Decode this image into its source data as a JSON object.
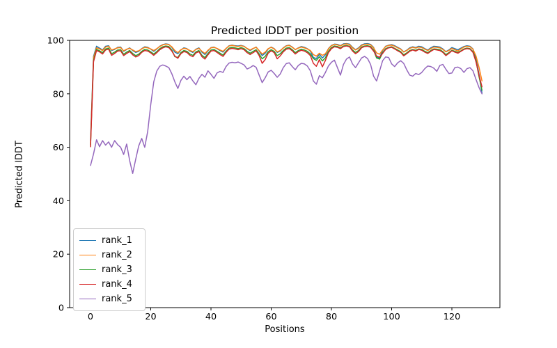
{
  "figure": {
    "title": "Predicted lDDT per position",
    "xlabel": "Positions",
    "ylabel": "Predicted lDDT",
    "background_color": "#ffffff",
    "axis_color": "#000000"
  },
  "legend": {
    "entries": [
      {
        "label": "rank_1",
        "color": "#1f77b4"
      },
      {
        "label": "rank_2",
        "color": "#ff7f0e"
      },
      {
        "label": "rank_3",
        "color": "#2ca02c"
      },
      {
        "label": "rank_4",
        "color": "#d62728"
      },
      {
        "label": "rank_5",
        "color": "#9467bd"
      }
    ]
  },
  "chart_data": {
    "type": "line",
    "title": "Predicted lDDT per position",
    "xlabel": "Positions",
    "ylabel": "Predicted lDDT",
    "xlim": [
      -6.94,
      135.95
    ],
    "ylim": [
      0,
      100
    ],
    "xticks": [
      0,
      20,
      40,
      60,
      80,
      100,
      120
    ],
    "yticks": [
      0,
      20,
      40,
      60,
      80,
      100
    ],
    "grid": false,
    "legend_position": "lower left",
    "x_start": 0,
    "x_step": 1,
    "series": [
      {
        "name": "rank_1",
        "color": "#1f77b4",
        "values": [
          62.5,
          94.0,
          97.8,
          97.1,
          96.4,
          97.8,
          98.0,
          96.2,
          96.6,
          97.4,
          97.5,
          95.9,
          96.6,
          97.2,
          96.2,
          95.5,
          95.9,
          96.9,
          97.6,
          97.4,
          96.7,
          95.9,
          96.8,
          97.8,
          98.4,
          98.7,
          98.5,
          97.4,
          95.6,
          95.0,
          96.4,
          97.2,
          96.9,
          96.0,
          95.5,
          96.7,
          97.2,
          95.6,
          94.7,
          96.1,
          97.3,
          97.5,
          96.9,
          96.2,
          95.6,
          96.9,
          98.0,
          98.2,
          98.0,
          97.9,
          98.1,
          97.8,
          96.9,
          96.2,
          96.9,
          97.5,
          96.0,
          94.3,
          95.2,
          96.8,
          97.5,
          96.9,
          95.5,
          96.0,
          97.2,
          98.0,
          98.2,
          97.5,
          96.5,
          97.2,
          97.7,
          97.4,
          96.9,
          96.0,
          93.6,
          93.2,
          94.8,
          93.4,
          94.6,
          96.9,
          98.1,
          98.6,
          98.5,
          98.0,
          98.7,
          98.8,
          98.6,
          97.4,
          96.5,
          97.2,
          98.3,
          98.7,
          98.8,
          98.5,
          97.4,
          93.8,
          93.4,
          96.2,
          97.8,
          98.2,
          98.4,
          98.0,
          97.4,
          96.8,
          95.7,
          96.3,
          97.2,
          97.6,
          97.3,
          97.8,
          97.6,
          96.9,
          96.4,
          97.2,
          97.8,
          97.7,
          97.5,
          96.8,
          95.8,
          96.4,
          97.3,
          96.9,
          96.5,
          97.1,
          97.7,
          98.0,
          97.8,
          96.8,
          93.0,
          87.5,
          80.2
        ]
      },
      {
        "name": "rank_2",
        "color": "#ff7f0e",
        "values": [
          61.5,
          93.5,
          97.2,
          96.8,
          96.2,
          97.5,
          97.8,
          96.4,
          96.8,
          97.2,
          97.3,
          96.1,
          96.7,
          97.0,
          96.4,
          95.8,
          96.1,
          96.8,
          97.4,
          97.2,
          96.8,
          96.2,
          96.9,
          97.7,
          98.3,
          98.6,
          98.4,
          97.6,
          96.2,
          95.4,
          96.5,
          97.0,
          96.8,
          96.2,
          95.8,
          96.6,
          97.0,
          95.9,
          95.1,
          96.3,
          97.2,
          97.4,
          97.0,
          96.4,
          95.9,
          97.0,
          97.9,
          98.1,
          97.9,
          97.7,
          98.0,
          97.7,
          97.0,
          96.4,
          97.0,
          97.4,
          96.2,
          94.9,
          95.6,
          96.9,
          97.4,
          96.8,
          95.7,
          96.2,
          97.1,
          97.9,
          98.1,
          97.4,
          96.6,
          97.1,
          97.5,
          97.2,
          96.8,
          96.2,
          94.7,
          94.1,
          95.2,
          94.4,
          95.0,
          96.8,
          98.0,
          98.5,
          98.3,
          97.9,
          98.5,
          98.7,
          98.4,
          97.2,
          96.4,
          97.0,
          98.1,
          98.5,
          98.6,
          98.3,
          97.2,
          95.3,
          94.8,
          96.4,
          97.7,
          98.1,
          98.2,
          97.8,
          97.2,
          96.7,
          95.6,
          96.2,
          97.0,
          97.4,
          97.1,
          97.5,
          97.3,
          96.7,
          96.2,
          96.9,
          97.5,
          97.4,
          97.2,
          96.6,
          95.7,
          96.2,
          97.0,
          96.5,
          96.0,
          96.8,
          97.5,
          97.8,
          97.6,
          96.7,
          94.2,
          90.0,
          84.8
        ]
      },
      {
        "name": "rank_3",
        "color": "#2ca02c",
        "values": [
          60.8,
          92.5,
          96.6,
          96.1,
          95.4,
          96.8,
          97.1,
          95.0,
          95.6,
          96.4,
          96.5,
          94.8,
          95.6,
          96.2,
          95.1,
          94.3,
          94.8,
          95.9,
          96.6,
          96.4,
          95.7,
          94.9,
          95.8,
          96.9,
          97.6,
          97.9,
          97.7,
          96.4,
          93.9,
          93.6,
          95.4,
          96.2,
          95.9,
          94.9,
          94.4,
          95.7,
          96.2,
          94.4,
          93.6,
          95.1,
          96.4,
          96.6,
          95.9,
          95.2,
          94.5,
          95.9,
          97.1,
          97.4,
          97.2,
          96.9,
          97.3,
          96.9,
          95.9,
          95.2,
          95.9,
          96.5,
          94.9,
          93.1,
          94.0,
          95.8,
          96.5,
          95.9,
          94.3,
          95.0,
          96.2,
          97.1,
          97.3,
          96.5,
          95.4,
          96.2,
          96.7,
          96.4,
          95.9,
          94.9,
          93.2,
          92.5,
          93.9,
          92.3,
          93.5,
          95.9,
          97.3,
          97.9,
          97.7,
          97.2,
          97.9,
          98.1,
          97.8,
          96.4,
          95.5,
          96.2,
          97.5,
          97.9,
          98.0,
          97.7,
          96.4,
          93.4,
          93.0,
          95.4,
          96.9,
          97.4,
          97.6,
          97.0,
          96.4,
          95.8,
          94.6,
          95.3,
          96.2,
          96.6,
          96.3,
          96.8,
          96.6,
          95.9,
          95.4,
          96.2,
          96.8,
          96.7,
          96.5,
          95.8,
          94.7,
          95.4,
          96.3,
          95.9,
          95.5,
          96.1,
          96.8,
          97.1,
          96.9,
          95.8,
          92.5,
          86.5,
          81.3
        ]
      },
      {
        "name": "rank_4",
        "color": "#d62728",
        "values": [
          60.2,
          92.0,
          96.2,
          95.7,
          94.9,
          96.4,
          96.7,
          94.4,
          95.1,
          96.0,
          96.1,
          94.3,
          95.1,
          95.8,
          94.6,
          93.8,
          94.3,
          95.5,
          96.2,
          96.0,
          95.3,
          94.4,
          95.4,
          96.5,
          97.2,
          97.6,
          97.3,
          96.0,
          94.1,
          93.3,
          95.0,
          95.8,
          95.5,
          94.4,
          93.9,
          95.3,
          95.8,
          93.9,
          93.0,
          94.6,
          96.0,
          96.2,
          95.5,
          94.7,
          94.0,
          95.5,
          96.7,
          97.0,
          96.8,
          96.5,
          96.9,
          96.5,
          95.4,
          94.7,
          95.4,
          96.1,
          94.3,
          91.4,
          92.8,
          95.2,
          96.1,
          95.4,
          93.1,
          94.2,
          95.7,
          96.7,
          96.9,
          96.1,
          94.9,
          95.8,
          96.3,
          96.0,
          95.4,
          94.3,
          91.4,
          90.3,
          92.8,
          90.1,
          92.5,
          95.4,
          96.9,
          97.6,
          97.4,
          96.9,
          97.7,
          97.9,
          97.6,
          96.0,
          95.0,
          95.8,
          97.2,
          97.7,
          97.8,
          97.4,
          96.0,
          94.1,
          93.7,
          95.1,
          96.6,
          97.2,
          97.4,
          96.8,
          96.1,
          95.5,
          94.2,
          95.0,
          95.9,
          96.4,
          96.0,
          96.6,
          96.3,
          95.6,
          95.1,
          95.9,
          96.6,
          96.4,
          96.2,
          95.5,
          94.3,
          95.1,
          96.1,
          95.6,
          95.2,
          95.9,
          96.6,
          96.9,
          96.7,
          95.5,
          92.0,
          87.0,
          82.6
        ]
      },
      {
        "name": "rank_5",
        "color": "#9467bd",
        "values": [
          53.2,
          57.5,
          62.8,
          60.2,
          62.5,
          60.8,
          62.0,
          60.0,
          62.5,
          61.0,
          60.0,
          57.3,
          61.2,
          55.0,
          50.2,
          55.5,
          60.5,
          63.3,
          60.0,
          66.0,
          76.0,
          84.5,
          88.5,
          90.3,
          90.8,
          90.4,
          89.8,
          87.5,
          84.5,
          82.0,
          85.0,
          86.6,
          85.3,
          86.5,
          84.8,
          83.4,
          85.8,
          87.3,
          86.2,
          88.6,
          87.3,
          85.8,
          87.8,
          88.4,
          88.0,
          90.2,
          91.5,
          91.8,
          91.6,
          91.9,
          91.4,
          90.8,
          89.3,
          89.8,
          90.6,
          89.9,
          87.0,
          84.2,
          86.0,
          88.2,
          88.8,
          87.6,
          86.2,
          87.4,
          89.8,
          91.3,
          91.6,
          90.2,
          89.0,
          90.6,
          91.4,
          91.2,
          90.4,
          88.6,
          84.8,
          83.6,
          86.8,
          86.0,
          88.0,
          90.4,
          91.8,
          92.6,
          89.8,
          87.0,
          91.0,
          93.0,
          93.8,
          91.2,
          89.8,
          91.6,
          93.4,
          94.0,
          93.2,
          91.0,
          86.6,
          84.8,
          88.6,
          92.4,
          93.8,
          93.6,
          91.2,
          90.2,
          91.6,
          92.4,
          91.4,
          89.0,
          87.0,
          86.6,
          87.6,
          87.2,
          88.0,
          89.4,
          90.4,
          90.2,
          89.6,
          88.4,
          90.6,
          91.0,
          89.2,
          87.6,
          87.8,
          89.8,
          90.0,
          89.4,
          88.0,
          89.4,
          89.8,
          88.6,
          85.4,
          82.4,
          80.0
        ]
      }
    ]
  }
}
